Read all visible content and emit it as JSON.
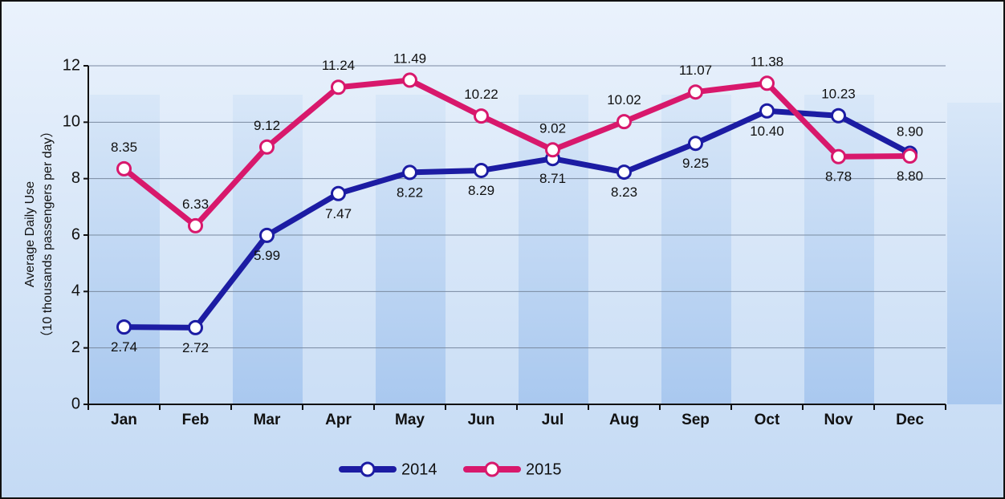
{
  "chart_data": {
    "type": "line",
    "ylabel": [
      "Average Daily Use",
      "（10 thousands passengers per day）"
    ],
    "categories": [
      "Jan",
      "Feb",
      "Mar",
      "Apr",
      "May",
      "Jun",
      "Jul",
      "Aug",
      "Sep",
      "Oct",
      "Nov",
      "Dec"
    ],
    "series": [
      {
        "name": "2014",
        "color": "#1c1ca3",
        "values": [
          2.74,
          2.72,
          5.99,
          7.47,
          8.22,
          8.29,
          8.71,
          8.23,
          9.25,
          10.4,
          10.23,
          8.9
        ],
        "value_labels": [
          "2.74",
          "2.72",
          "5.99",
          "7.47",
          "8.22",
          "8.29",
          "8.71",
          "8.23",
          "9.25",
          "10.40",
          "10.23",
          "8.90"
        ]
      },
      {
        "name": "2015",
        "color": "#d8186c",
        "values": [
          8.35,
          6.33,
          9.12,
          11.24,
          11.49,
          10.22,
          9.02,
          10.02,
          11.07,
          11.38,
          8.78,
          8.8
        ],
        "value_labels": [
          "8.35",
          "6.33",
          "9.12",
          "11.24",
          "11.49",
          "10.22",
          "9.02",
          "10.02",
          "11.07",
          "11.38",
          "8.78",
          "8.80"
        ]
      }
    ],
    "ylim": [
      0,
      12
    ],
    "yticks": [
      0,
      2,
      4,
      6,
      8,
      10,
      12
    ],
    "grid": true,
    "legend": "bottom"
  }
}
